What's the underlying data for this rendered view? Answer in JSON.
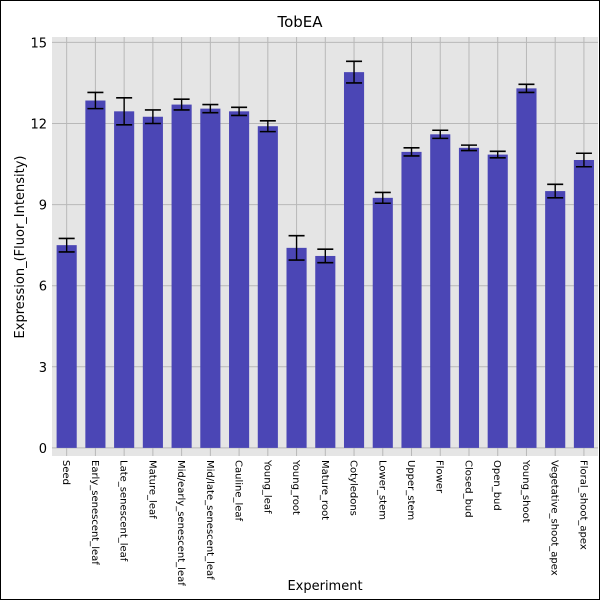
{
  "chart_data": {
    "type": "bar",
    "title": "TobEA",
    "xlabel": "Experiment",
    "ylabel": "Expression_(Fluor_Intensity)",
    "ylim": [
      -0.3,
      15.2
    ],
    "yticks": [
      0,
      3,
      6,
      9,
      12,
      15
    ],
    "grid": true,
    "bar_color": "#4b46b5",
    "plot_background": "#e5e5e5",
    "categories": [
      "Seed",
      "Early_senescent_leaf",
      "Late_senescent_leaf",
      "Mature_leaf",
      "Mid/early_senescent_leaf",
      "Mid/late_senescent_leaf",
      "Cauline_leaf",
      "Young_leaf",
      "Young_root",
      "Mature_root",
      "Cotyledons",
      "Lower_stem",
      "Upper_stem",
      "Flower",
      "Closed_bud",
      "Open_bud",
      "Young_shoot",
      "Vegetative_shoot_apex",
      "Floral_shoot_apex"
    ],
    "values": [
      7.5,
      12.85,
      12.45,
      12.25,
      12.7,
      12.55,
      12.45,
      11.9,
      7.4,
      7.1,
      13.9,
      9.25,
      10.95,
      11.6,
      11.1,
      10.85,
      13.3,
      9.5,
      10.65
    ],
    "errors": [
      0.25,
      0.3,
      0.5,
      0.25,
      0.2,
      0.15,
      0.15,
      0.2,
      0.45,
      0.25,
      0.4,
      0.2,
      0.15,
      0.15,
      0.1,
      0.12,
      0.15,
      0.25,
      0.25
    ]
  }
}
